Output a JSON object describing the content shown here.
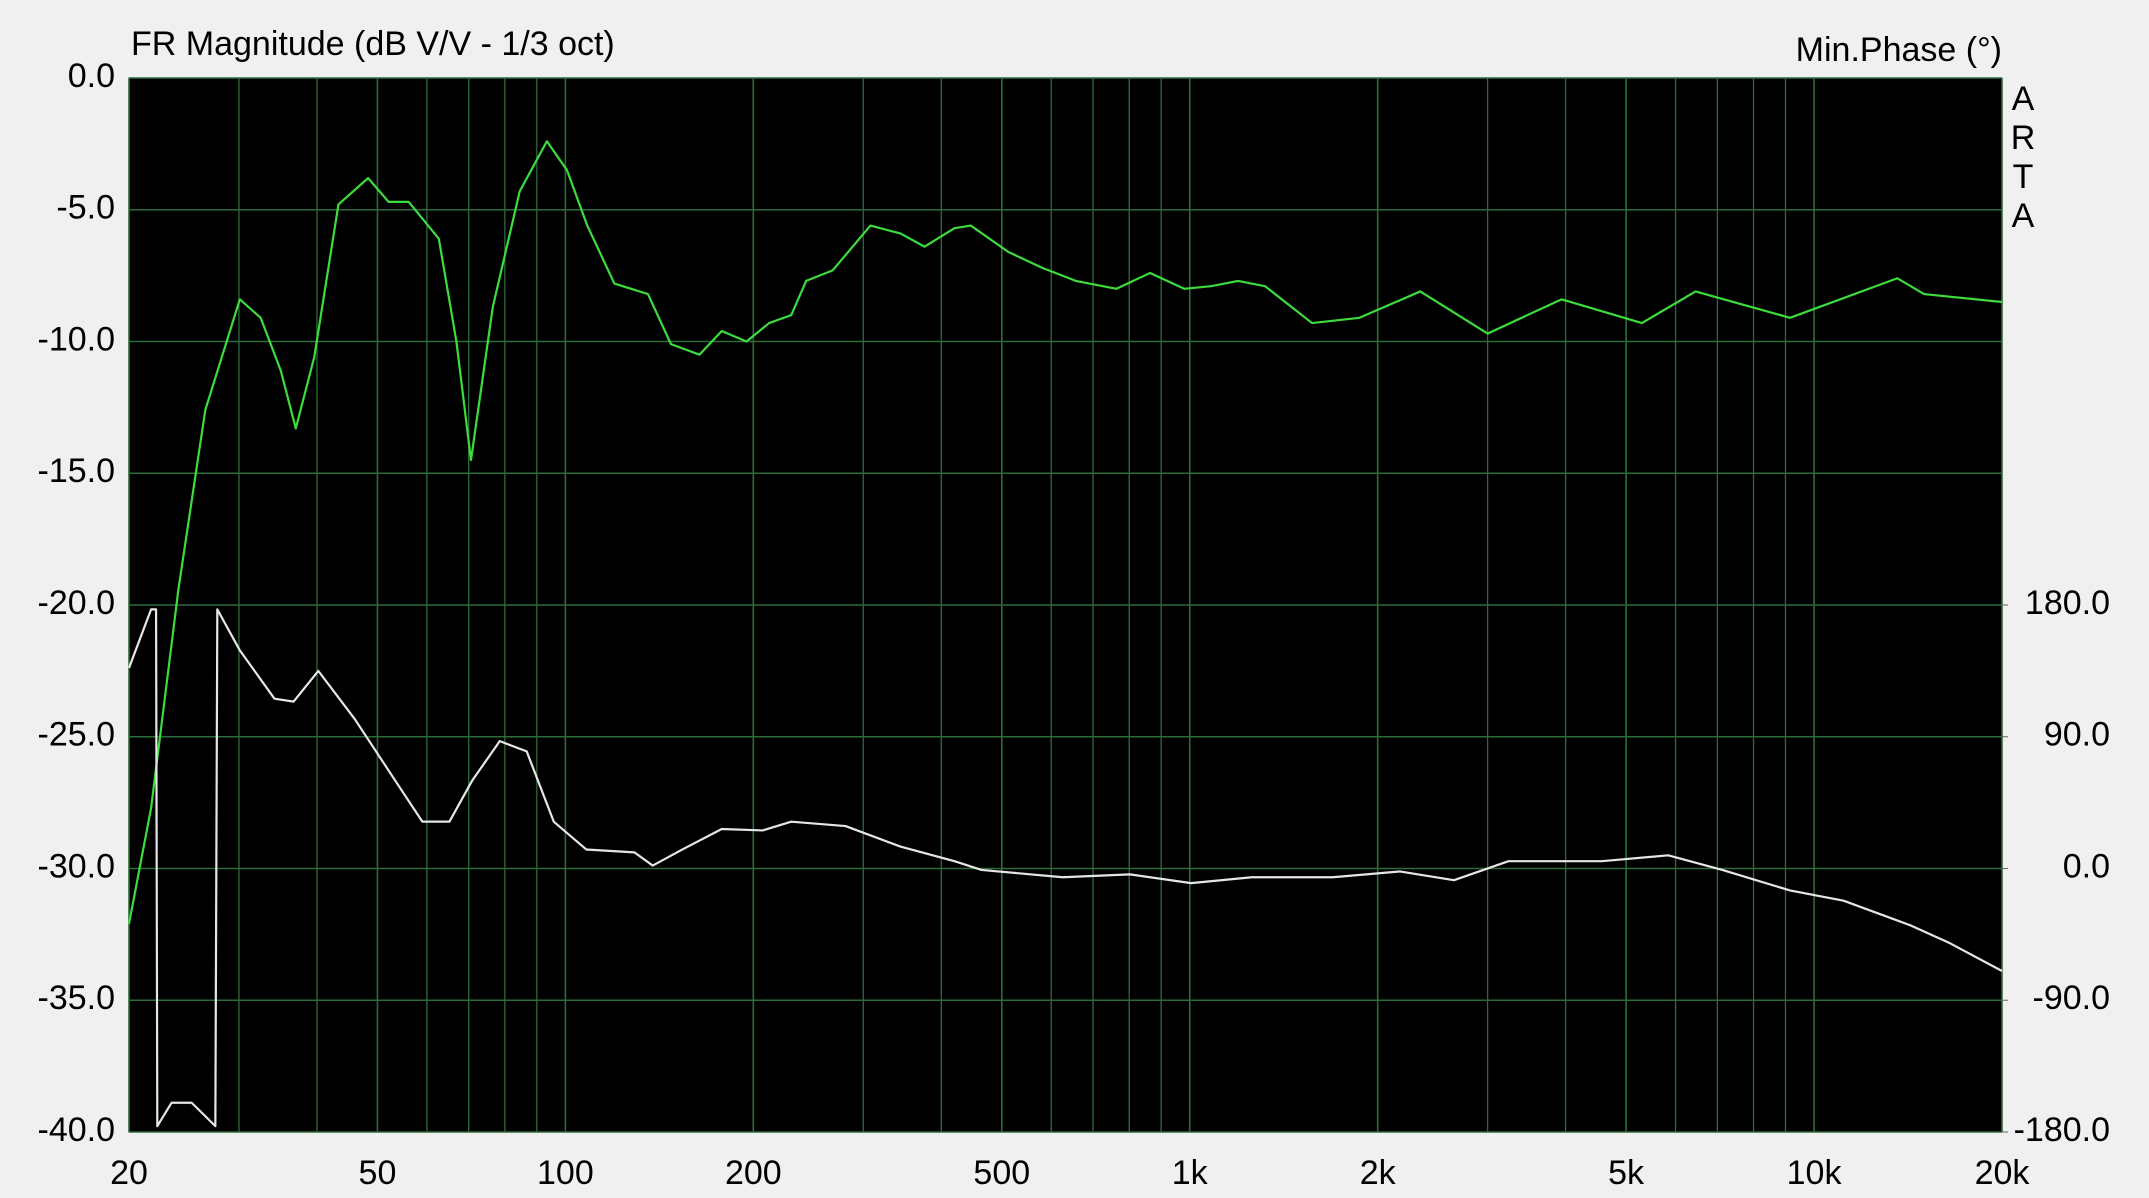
{
  "chart_data": {
    "type": "line",
    "title": "FR Magnitude (dB V/V - 1/3 oct)",
    "y2label": "Min.Phase (°)",
    "watermark": "ARTA",
    "xscale": "log",
    "grid": true,
    "background": "#000000",
    "grid_color": "#2e6b3a",
    "xlim": [
      20,
      20000
    ],
    "xticks": [
      20,
      50,
      100,
      200,
      500,
      {
        "value": 1000,
        "label": "1k"
      },
      {
        "value": 2000,
        "label": "2k"
      },
      {
        "value": 5000,
        "label": "5k"
      },
      {
        "value": 10000,
        "label": "10k"
      },
      {
        "value": 20000,
        "label": "20k"
      }
    ],
    "ylim": [
      -40,
      0
    ],
    "yticks": [
      {
        "value": 0,
        "label": "0.0"
      },
      {
        "value": -5,
        "label": "-5.0"
      },
      {
        "value": -10,
        "label": "-10.0"
      },
      {
        "value": -15,
        "label": "-15.0"
      },
      {
        "value": -20,
        "label": "-20.0"
      },
      {
        "value": -25,
        "label": "-25.0"
      },
      {
        "value": -30,
        "label": "-30.0"
      },
      {
        "value": -35,
        "label": "-35.0"
      },
      {
        "value": -40,
        "label": "-40.0"
      }
    ],
    "y2lim": [
      -180,
      540
    ],
    "y2ticks": [
      {
        "value": 180,
        "label": "180.0"
      },
      {
        "value": 90,
        "label": "90.0"
      },
      {
        "value": 0,
        "label": "0.0"
      },
      {
        "value": -90,
        "label": "-90.0"
      },
      {
        "value": -180,
        "label": "-180.0"
      }
    ],
    "series": [
      {
        "color": "#3cdc3c",
        "x": [
          20,
          21.7,
          24,
          26.5,
          30.1,
          32.5,
          35,
          37,
          39.6,
          43.3,
          48.3,
          52.1,
          56.1,
          62.7,
          66.9,
          70.6,
          76.5,
          84.5,
          93.4,
          100.6,
          108.4,
          119.8,
          135.6,
          147.6,
          164,
          178,
          195,
          212,
          230,
          243,
          268,
          308,
          344,
          376,
          420,
          446,
          512,
          580,
          657,
          763,
          864,
          980,
          1082,
          1195,
          1320,
          1570,
          1870,
          2340,
          3000,
          3940,
          5300,
          6460,
          9150,
          13600,
          15000,
          20000
        ],
        "values": [
          -32.1,
          -27.7,
          -19.4,
          -12.6,
          -8.4,
          -9.1,
          -11.1,
          -13.3,
          -10.6,
          -4.8,
          -3.8,
          -4.7,
          -4.7,
          -6.1,
          -10.0,
          -14.5,
          -8.7,
          -4.3,
          -2.4,
          -3.5,
          -5.6,
          -7.8,
          -8.2,
          -10.1,
          -10.5,
          -9.6,
          -10.0,
          -9.3,
          -9.0,
          -7.7,
          -7.3,
          -5.6,
          -5.9,
          -6.4,
          -5.7,
          -5.6,
          -6.6,
          -7.2,
          -7.7,
          -8.0,
          -7.4,
          -8.0,
          -7.9,
          -7.7,
          -7.9,
          -9.3,
          -9.1,
          -8.1,
          -9.7,
          -8.4,
          -9.3,
          -8.1,
          -9.1,
          -7.6,
          -8.2,
          -8.5
        ]
      },
      {
        "color": "#e6e6e6",
        "axis": "y2",
        "x": [
          20,
          21.7,
          22.1,
          22.2,
          23.4,
          25.2,
          27.5,
          27.7,
          30.1,
          34.2,
          36.7,
          40.2,
          46,
          53.4,
          59,
          65.2,
          70.9,
          78.5,
          86.7,
          95.8,
          108,
          129,
          138,
          154,
          178,
          207,
          230,
          281,
          344,
          420,
          464,
          626,
          802,
          1005,
          1257,
          1694,
          2170,
          2650,
          3240,
          4570,
          5840,
          7130,
          9150,
          11150,
          14300,
          16500,
          20000
        ],
        "values": [
          137,
          177,
          177,
          -176,
          -160,
          -160,
          -176,
          177,
          149,
          116,
          114,
          135,
          102,
          60,
          32,
          32,
          60,
          87,
          80,
          32,
          13,
          11,
          2,
          13,
          27,
          26,
          32,
          29,
          15,
          5,
          -1,
          -6,
          -4,
          -10,
          -6,
          -6,
          -2,
          -8,
          5,
          5,
          9,
          -1,
          -15,
          -22,
          -39,
          -51,
          -70
        ]
      }
    ]
  }
}
